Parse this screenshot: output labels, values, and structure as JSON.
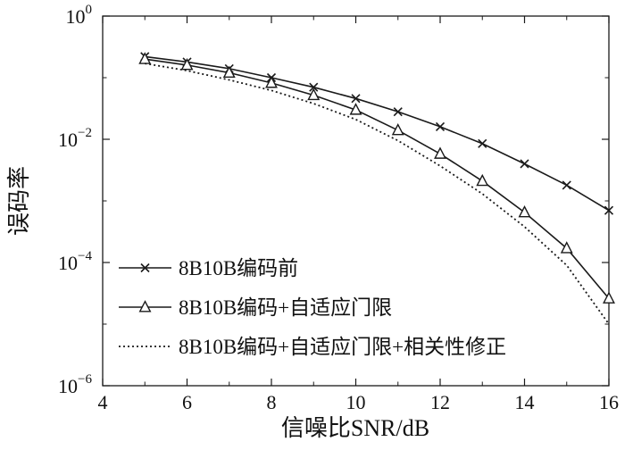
{
  "chart_data": {
    "type": "line",
    "title": "",
    "xlabel": "信噪比SNR/dB",
    "ylabel": "误码率",
    "line_color": "#1a1a1a",
    "background_color": "#ffffff",
    "grid": false,
    "legend_position": "lower-left",
    "legend_border": false,
    "xlim": [
      4,
      16
    ],
    "ylog": true,
    "ylim_exp_top": 0,
    "ylim_exp_bottom": -6,
    "x_ticks": [
      4,
      6,
      8,
      10,
      12,
      14,
      16
    ],
    "y_tick_exps": [
      0,
      -2,
      -4,
      -6
    ],
    "y_minor_tick_exps": [
      -1,
      -3,
      -5
    ],
    "x": [
      5,
      6,
      7,
      8,
      9,
      10,
      11,
      12,
      13,
      14,
      15,
      16
    ],
    "series": [
      {
        "name": "8B10B编码前",
        "marker": "x",
        "line": "solid",
        "values": [
          0.22,
          0.18,
          0.14,
          0.1,
          0.07,
          0.046,
          0.028,
          0.016,
          0.0085,
          0.004,
          0.0018,
          0.0007
        ]
      },
      {
        "name": "8B10B编码+自适应门限",
        "marker": "triangle",
        "line": "solid",
        "values": [
          0.2,
          0.16,
          0.12,
          0.082,
          0.052,
          0.03,
          0.014,
          0.0058,
          0.0021,
          0.00065,
          0.00017,
          2.6e-05
        ]
      },
      {
        "name": "8B10B编码+自适应门限+相关性修正",
        "marker": "none",
        "line": "dotted",
        "values": [
          0.17,
          0.13,
          0.092,
          0.062,
          0.038,
          0.021,
          0.0095,
          0.0037,
          0.0013,
          0.00038,
          9e-05,
          1e-05
        ]
      }
    ]
  }
}
